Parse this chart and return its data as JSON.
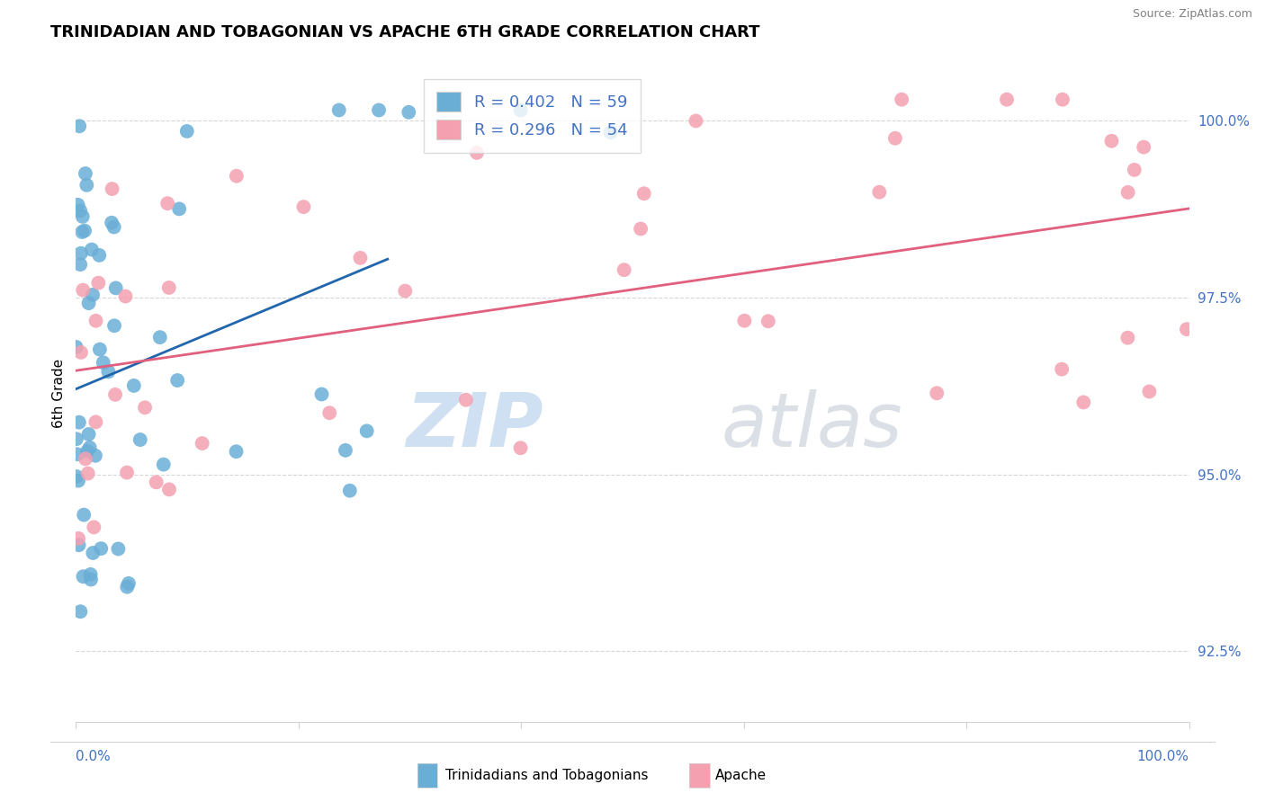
{
  "title": "TRINIDADIAN AND TOBAGONIAN VS APACHE 6TH GRADE CORRELATION CHART",
  "source": "Source: ZipAtlas.com",
  "ylabel": "6th Grade",
  "y_ticks": [
    92.5,
    95.0,
    97.5,
    100.0
  ],
  "y_tick_labels": [
    "92.5%",
    "95.0%",
    "97.5%",
    "100.0%"
  ],
  "x_min": 0.0,
  "x_max": 100.0,
  "y_min": 91.5,
  "y_max": 100.8,
  "blue_R": 0.402,
  "blue_N": 59,
  "pink_R": 0.296,
  "pink_N": 54,
  "blue_color": "#6aaed6",
  "pink_color": "#f4a0b0",
  "blue_line_color": "#2166ac",
  "pink_line_color": "#e0607e",
  "legend_label_blue": "Trinidadians and Tobagonians",
  "legend_label_pink": "Apache",
  "watermark_zip": "ZIP",
  "watermark_atlas": "atlas"
}
